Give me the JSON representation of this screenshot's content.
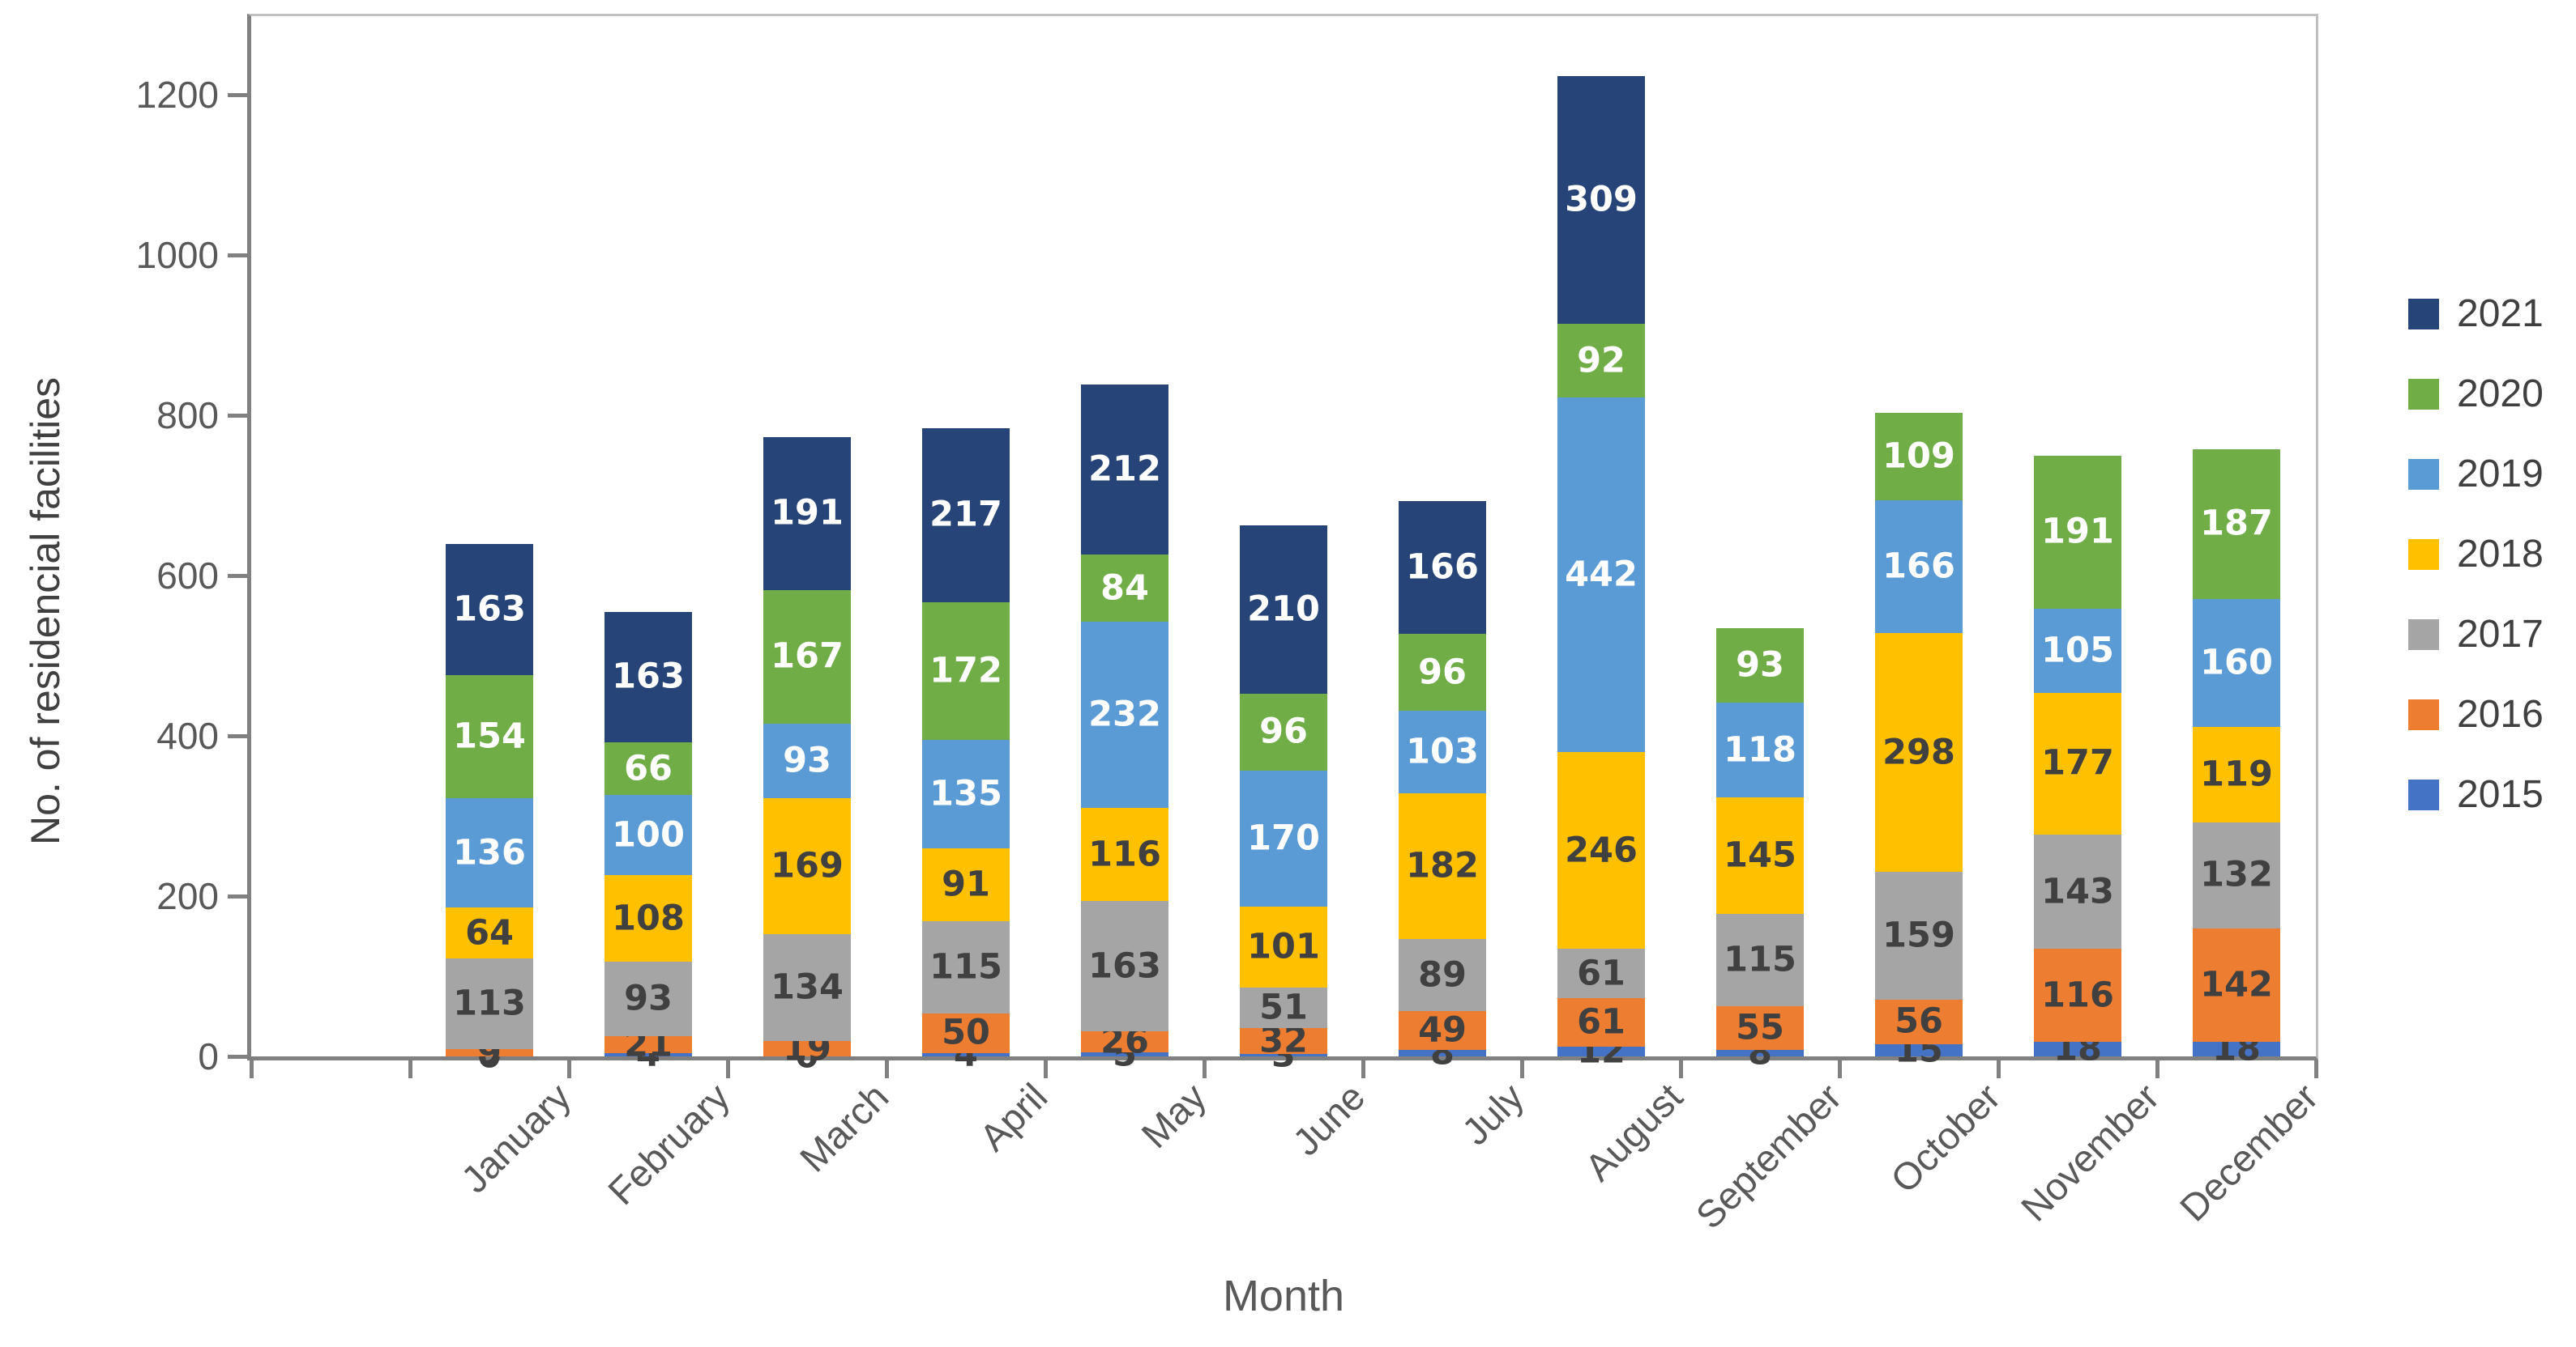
{
  "chart_data": {
    "type": "bar",
    "stacked": true,
    "title": "",
    "xlabel": "Month",
    "ylabel": "No. of residencial facilities",
    "ylim": [
      0,
      1300
    ],
    "yticks": [
      0,
      200,
      400,
      600,
      800,
      1000,
      1200
    ],
    "grid": false,
    "categories": [
      "January",
      "February",
      "March",
      "April",
      "May",
      "June",
      "July",
      "August",
      "September",
      "October",
      "November",
      "December"
    ],
    "series": [
      {
        "name": "2015",
        "color": "#4472C4",
        "label_color": "#404040",
        "show_zero_labels": true,
        "values": [
          0,
          4,
          0,
          4,
          5,
          3,
          8,
          12,
          8,
          15,
          18,
          18
        ]
      },
      {
        "name": "2016",
        "color": "#ED7D31",
        "label_color": "#404040",
        "show_zero_labels": true,
        "values": [
          9,
          21,
          19,
          50,
          26,
          32,
          49,
          61,
          55,
          56,
          116,
          142
        ]
      },
      {
        "name": "2017",
        "color": "#A5A5A5",
        "label_color": "#404040",
        "show_zero_labels": true,
        "values": [
          113,
          93,
          134,
          115,
          163,
          51,
          89,
          61,
          115,
          159,
          143,
          132
        ]
      },
      {
        "name": "2018",
        "color": "#FFC000",
        "label_color": "#404040",
        "show_zero_labels": true,
        "values": [
          64,
          108,
          169,
          91,
          116,
          101,
          182,
          246,
          145,
          298,
          177,
          119
        ]
      },
      {
        "name": "2019",
        "color": "#5B9BD5",
        "label_color": "#FFFFFF",
        "show_zero_labels": true,
        "values": [
          136,
          100,
          93,
          135,
          232,
          170,
          103,
          442,
          118,
          166,
          105,
          160
        ]
      },
      {
        "name": "2020",
        "color": "#70AD47",
        "label_color": "#FFFFFF",
        "show_zero_labels": true,
        "values": [
          154,
          66,
          167,
          172,
          84,
          96,
          96,
          92,
          93,
          109,
          191,
          187
        ]
      },
      {
        "name": "2021",
        "color": "#264478",
        "label_color": "#FFFFFF",
        "show_zero_labels": false,
        "values": [
          163,
          163,
          191,
          217,
          212,
          210,
          166,
          309,
          0,
          0,
          0,
          0
        ]
      }
    ],
    "legend": {
      "position": "right",
      "entries": [
        "2021",
        "2020",
        "2019",
        "2018",
        "2017",
        "2016",
        "2015"
      ]
    }
  }
}
